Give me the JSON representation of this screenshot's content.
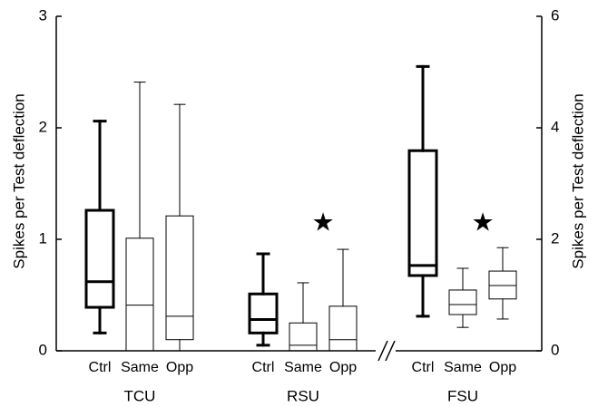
{
  "chart_data": {
    "type": "box",
    "ylabel": "Spikes per Test deflection",
    "y2label": "Spikes per Test deflection",
    "ylim": [
      0,
      3
    ],
    "yticks": [
      0,
      1,
      2,
      3
    ],
    "y2lim": [
      0,
      6
    ],
    "y2ticks": [
      0,
      2,
      4,
      6
    ],
    "color": "#000000",
    "groups": [
      {
        "name": "TCU",
        "axis": "y",
        "boxes": [
          {
            "name": "Ctrl",
            "line_width": 3,
            "whislo": 0.16,
            "q1": 0.39,
            "med": 0.62,
            "q3": 1.26,
            "whishi": 2.06
          },
          {
            "name": "Same",
            "line_width": 1,
            "whislo": 0,
            "q1": 0,
            "med": 0.41,
            "q3": 1.01,
            "whishi": 2.41
          },
          {
            "name": "Opp",
            "line_width": 1,
            "whislo": 0,
            "q1": 0.1,
            "med": 0.31,
            "q3": 1.21,
            "whishi": 2.21
          }
        ]
      },
      {
        "name": "RSU",
        "axis": "y",
        "annotation": "★",
        "boxes": [
          {
            "name": "Ctrl",
            "line_width": 3,
            "whislo": 0.05,
            "q1": 0.16,
            "med": 0.28,
            "q3": 0.51,
            "whishi": 0.87
          },
          {
            "name": "Same",
            "line_width": 1,
            "whislo": 0,
            "q1": 0,
            "med": 0.05,
            "q3": 0.25,
            "whishi": 0.61
          },
          {
            "name": "Opp",
            "line_width": 1,
            "whislo": 0,
            "q1": 0,
            "med": 0.1,
            "q3": 0.4,
            "whishi": 0.91
          }
        ]
      },
      {
        "name": "FSU",
        "axis": "y2",
        "annotation": "★",
        "boxes": [
          {
            "name": "Ctrl",
            "line_width": 3,
            "whislo": 0.62,
            "q1": 1.35,
            "med": 1.53,
            "q3": 3.59,
            "whishi": 5.1
          },
          {
            "name": "Same",
            "line_width": 1,
            "whislo": 0.42,
            "q1": 0.65,
            "med": 0.83,
            "q3": 1.09,
            "whishi": 1.48
          },
          {
            "name": "Opp",
            "line_width": 1,
            "whislo": 0.57,
            "q1": 0.93,
            "med": 1.17,
            "q3": 1.43,
            "whishi": 1.85
          }
        ]
      }
    ]
  }
}
